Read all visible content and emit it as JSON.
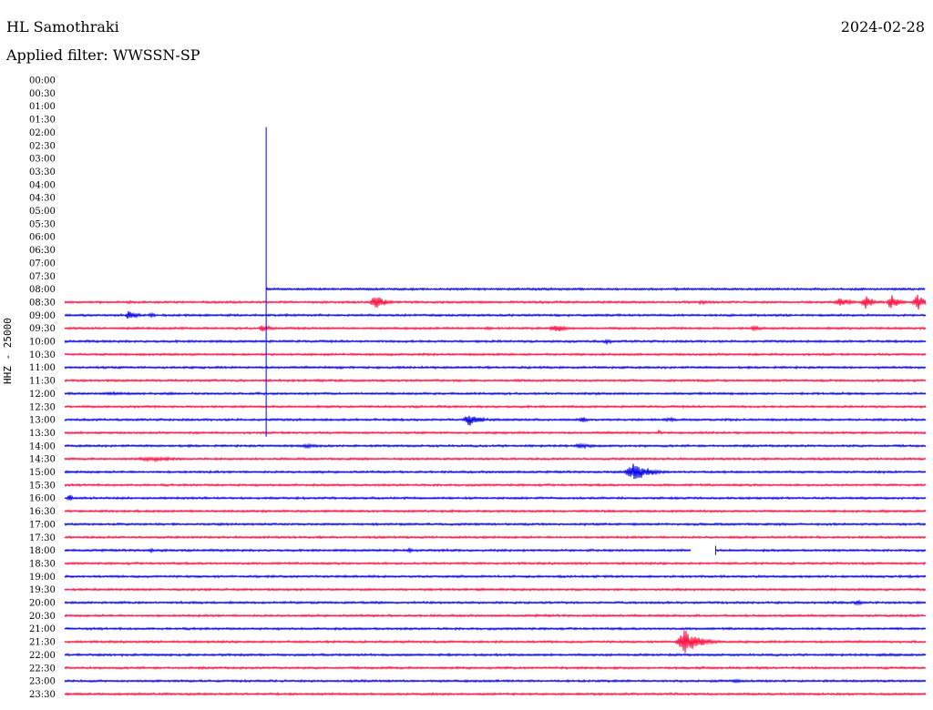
{
  "header": {
    "station": "HL Samothraki",
    "date": "2024-02-28",
    "filter_text": "Applied filter: WWSSN-SP"
  },
  "chart_data": {
    "type": "line",
    "ylabel": "HHZ - 25000",
    "title": "",
    "tick_labels": [
      "00:00",
      "00:30",
      "01:00",
      "01:30",
      "02:00",
      "02:30",
      "03:00",
      "03:30",
      "04:00",
      "04:30",
      "05:00",
      "05:30",
      "06:00",
      "06:30",
      "07:00",
      "07:30",
      "08:00",
      "08:30",
      "09:00",
      "09:30",
      "10:00",
      "10:30",
      "11:00",
      "11:30",
      "12:00",
      "12:30",
      "13:00",
      "13:30",
      "14:00",
      "14:30",
      "15:00",
      "15:30",
      "16:00",
      "16:30",
      "17:00",
      "17:30",
      "18:00",
      "18:30",
      "19:00",
      "19:30",
      "20:00",
      "20:30",
      "21:00",
      "21:30",
      "22:00",
      "22:30",
      "23:00",
      "23:30"
    ],
    "colors": {
      "even": "#0000e6",
      "odd": "#ff0f3f"
    },
    "data_start_trace": 16,
    "data_start_fraction": 0.234,
    "spike": {
      "trace": 16,
      "fraction": 0.234,
      "from_trace": 3.6,
      "to_trace": 27.3
    },
    "gap": {
      "trace": 36,
      "from": 0.727,
      "to": 0.756
    },
    "events": [
      {
        "trace": 17,
        "pos": 0.36,
        "amp": 10,
        "width": 0.025
      },
      {
        "trace": 17,
        "pos": 0.075,
        "amp": 2,
        "width": 0.02
      },
      {
        "trace": 17,
        "pos": 0.74,
        "amp": 3,
        "width": 0.03
      },
      {
        "trace": 17,
        "pos": 0.9,
        "amp": 6,
        "width": 0.03
      },
      {
        "trace": 17,
        "pos": 0.93,
        "amp": 9,
        "width": 0.02
      },
      {
        "trace": 17,
        "pos": 0.96,
        "amp": 10,
        "width": 0.02
      },
      {
        "trace": 17,
        "pos": 0.99,
        "amp": 11,
        "width": 0.02
      },
      {
        "trace": 18,
        "pos": 0.075,
        "amp": 7,
        "width": 0.02
      },
      {
        "trace": 18,
        "pos": 0.1,
        "amp": 3,
        "width": 0.02
      },
      {
        "trace": 19,
        "pos": 0.23,
        "amp": 4,
        "width": 0.03
      },
      {
        "trace": 19,
        "pos": 0.49,
        "amp": 3,
        "width": 0.02
      },
      {
        "trace": 19,
        "pos": 0.57,
        "amp": 6,
        "width": 0.03
      },
      {
        "trace": 19,
        "pos": 0.8,
        "amp": 4,
        "width": 0.02
      },
      {
        "trace": 20,
        "pos": 0.63,
        "amp": 3,
        "width": 0.02
      },
      {
        "trace": 22,
        "pos": 0.32,
        "amp": 3,
        "width": 0.01
      },
      {
        "trace": 24,
        "pos": 0.05,
        "amp": 2,
        "width": 0.1
      },
      {
        "trace": 26,
        "pos": 0.47,
        "amp": 8,
        "width": 0.03
      },
      {
        "trace": 26,
        "pos": 0.6,
        "amp": 4,
        "width": 0.02
      },
      {
        "trace": 26,
        "pos": 0.7,
        "amp": 3,
        "width": 0.03
      },
      {
        "trace": 27,
        "pos": 0.69,
        "amp": 3,
        "width": 0.01
      },
      {
        "trace": 28,
        "pos": 0.28,
        "amp": 3,
        "width": 0.05
      },
      {
        "trace": 28,
        "pos": 0.6,
        "amp": 3,
        "width": 0.04
      },
      {
        "trace": 29,
        "pos": 0.1,
        "amp": 3,
        "width": 0.1
      },
      {
        "trace": 30,
        "pos": 0.66,
        "amp": 12,
        "width": 0.04
      },
      {
        "trace": 32,
        "pos": 0.005,
        "amp": 5,
        "width": 0.01
      },
      {
        "trace": 36,
        "pos": 0.1,
        "amp": 3,
        "width": 0.015
      },
      {
        "trace": 36,
        "pos": 0.4,
        "amp": 3,
        "width": 0.015
      },
      {
        "trace": 40,
        "pos": 0.92,
        "amp": 3,
        "width": 0.03
      },
      {
        "trace": 43,
        "pos": 0.72,
        "amp": 15,
        "width": 0.04
      },
      {
        "trace": 44,
        "pos": 0.96,
        "amp": 2,
        "width": 0.02
      },
      {
        "trace": 46,
        "pos": 0.78,
        "amp": 3,
        "width": 0.02
      }
    ]
  }
}
